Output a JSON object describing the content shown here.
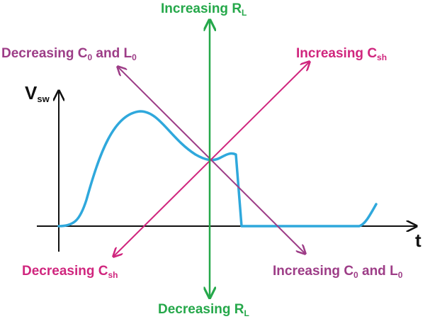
{
  "axes": {
    "y_label": "V",
    "y_label_sub": "sw",
    "x_label": "t"
  },
  "labels": {
    "top": {
      "main": "Increasing R",
      "sub": "L"
    },
    "bottom": {
      "main": "Decreasing R",
      "sub": "L"
    },
    "upper_left": {
      "main1": "Decreasing C",
      "sub1": "0",
      "mid": " and L",
      "sub2": "0"
    },
    "upper_right": {
      "main": "Increasing C",
      "sub": "sh"
    },
    "lower_left": {
      "main": "Decreasing C",
      "sub": "sh"
    },
    "lower_right": {
      "main1": "Increasing C",
      "sub1": "0",
      "mid": " and L",
      "sub2": "0"
    }
  },
  "colors": {
    "curve": "#2fa8dc",
    "green_arrow": "#25a84a",
    "pink_arrow": "#d0267e",
    "purple_arrow": "#9d3d87",
    "axes": "#111111"
  }
}
